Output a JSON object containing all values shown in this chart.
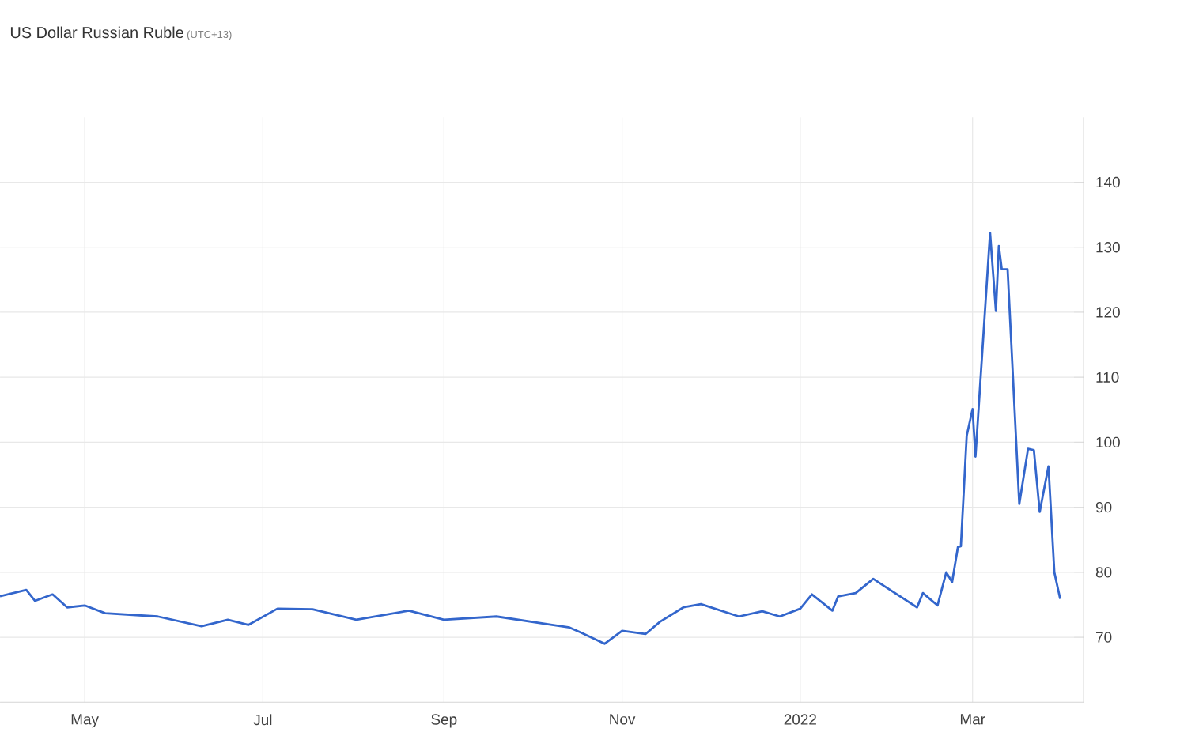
{
  "chart_data": {
    "type": "line",
    "title": "US Dollar Russian Ruble",
    "subtitle": "(UTC+13)",
    "x": [
      "2021-04-02",
      "2021-04-11",
      "2021-04-14",
      "2021-04-20",
      "2021-04-25",
      "2021-05-01",
      "2021-05-08",
      "2021-05-26",
      "2021-06-10",
      "2021-06-19",
      "2021-06-26",
      "2021-07-06",
      "2021-07-18",
      "2021-08-02",
      "2021-08-20",
      "2021-09-01",
      "2021-09-19",
      "2021-10-08",
      "2021-10-14",
      "2021-10-18",
      "2021-10-26",
      "2021-11-01",
      "2021-11-09",
      "2021-11-14",
      "2021-11-22",
      "2021-11-28",
      "2021-12-11",
      "2021-12-19",
      "2021-12-25",
      "2022-01-01",
      "2022-01-05",
      "2022-01-12",
      "2022-01-14",
      "2022-01-20",
      "2022-01-26",
      "2022-01-30",
      "2022-02-10",
      "2022-02-12",
      "2022-02-17",
      "2022-02-20",
      "2022-02-22",
      "2022-02-24",
      "2022-02-25",
      "2022-02-27",
      "2022-03-01",
      "2022-03-02",
      "2022-03-07",
      "2022-03-09",
      "2022-03-10",
      "2022-03-11",
      "2022-03-13",
      "2022-03-17",
      "2022-03-20",
      "2022-03-22",
      "2022-03-24",
      "2022-03-27",
      "2022-03-29",
      "2022-03-31"
    ],
    "series": [
      {
        "color": "#3366cc",
        "values": [
          76.3,
          77.3,
          75.6,
          76.6,
          74.6,
          74.9,
          73.7,
          73.2,
          71.7,
          72.7,
          71.9,
          74.4,
          74.3,
          72.7,
          74.1,
          72.7,
          73.2,
          71.9,
          71.5,
          70.7,
          69.0,
          71.0,
          70.5,
          72.4,
          74.6,
          75.1,
          73.2,
          74.0,
          73.2,
          74.4,
          76.6,
          74.1,
          76.3,
          76.8,
          79.0,
          77.8,
          74.6,
          76.8,
          74.9,
          80.0,
          78.5,
          83.9,
          84.0,
          101.0,
          105.1,
          97.8,
          132.2,
          120.2,
          130.2,
          126.6,
          126.6,
          90.5,
          99.0,
          98.8,
          89.3,
          96.3,
          80.0,
          75.9
        ]
      }
    ],
    "xlim": [
      "2021-04-02",
      "2022-04-08"
    ],
    "xticks": [
      {
        "value": "2021-05-01",
        "label": "May"
      },
      {
        "value": "2021-07-01",
        "label": "Jul"
      },
      {
        "value": "2021-09-01",
        "label": "Sep"
      },
      {
        "value": "2021-11-01",
        "label": "Nov"
      },
      {
        "value": "2022-01-01",
        "label": "2022"
      },
      {
        "value": "2022-03-01",
        "label": "Mar"
      }
    ],
    "ylim": [
      60,
      150
    ],
    "yticks": [
      70,
      80,
      90,
      100,
      110,
      120,
      130,
      140
    ],
    "grid": true,
    "line_style": "solid",
    "marker": "none"
  }
}
